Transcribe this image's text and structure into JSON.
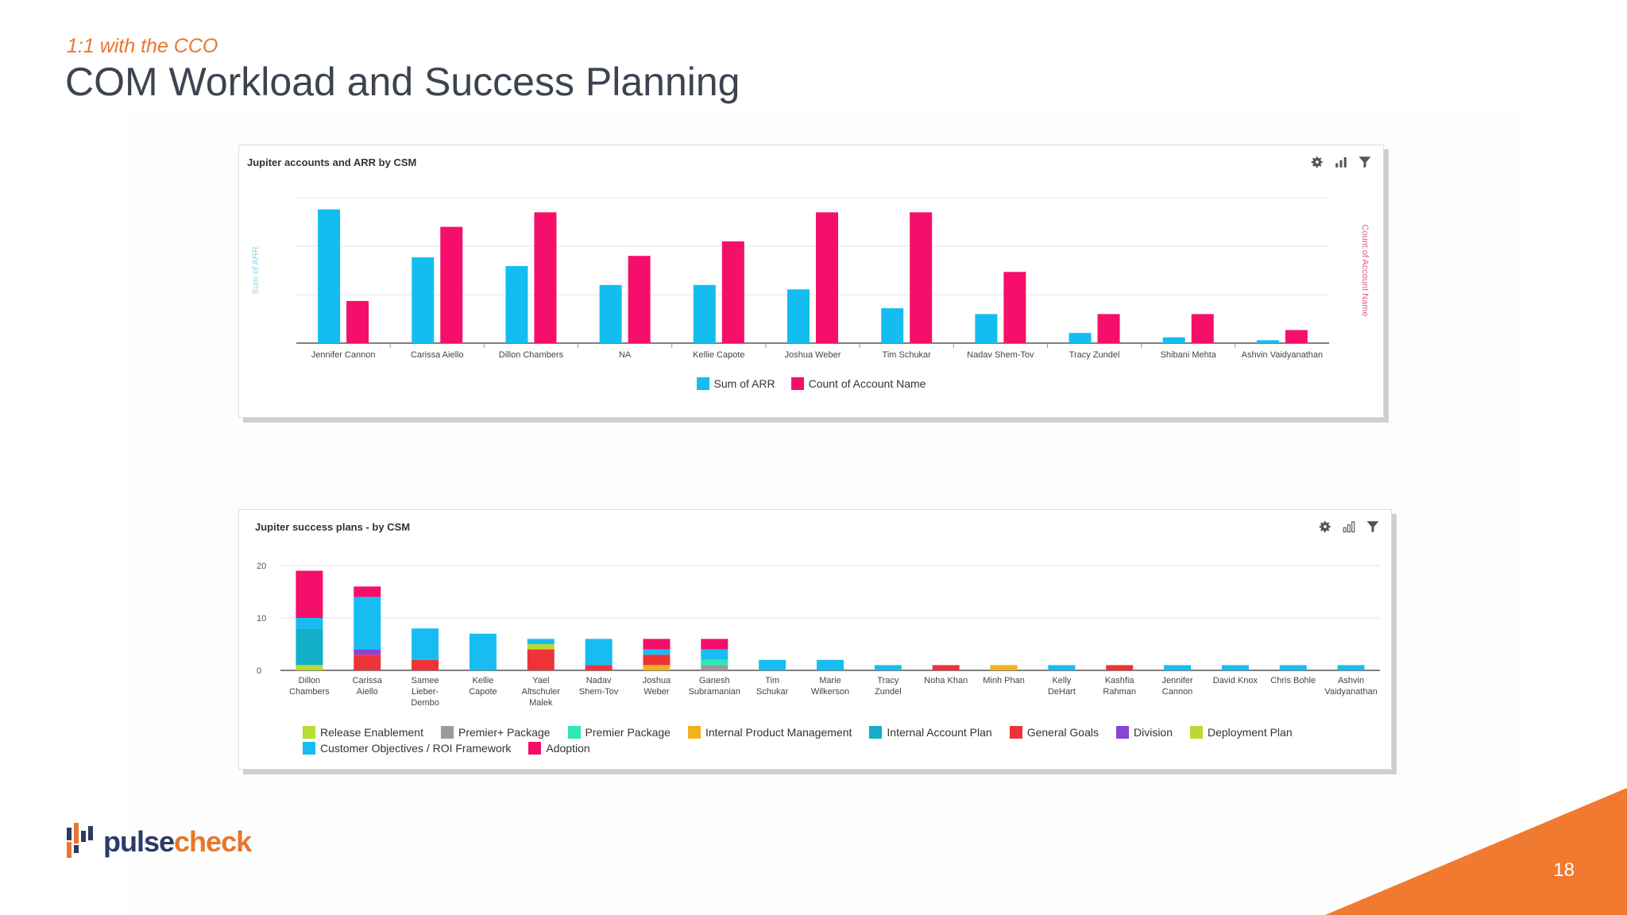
{
  "slide": {
    "subtitle": "1:1 with the CCO",
    "title": "COM Workload and Success Planning",
    "page_number": "18",
    "logo": {
      "part1": "pulse",
      "part2": "check"
    }
  },
  "colors": {
    "accent": "#e8762d",
    "navy": "#2b3a67"
  },
  "icons": [
    "gear-icon",
    "bar-chart-icon",
    "filter-icon"
  ],
  "chart_data": [
    {
      "type": "bar",
      "title": "Jupiter accounts and ARR by CSM",
      "ylabel": "Sum of ARR",
      "y2label": "Count of Account Name",
      "grid": true,
      "legend_position": "bottom",
      "categories": [
        "Jennifer Cannon",
        "Carissa Aiello",
        "Dillon Chambers",
        "NA",
        "Kellie Capote",
        "Joshua Weber",
        "Tim Schukar",
        "Nadav Shem-Tov",
        "Tracy Zundel",
        "Shibani Mehta",
        "Ashvin Vaidyanathan"
      ],
      "series": [
        {
          "name": "Sum of ARR",
          "color": "#14bdf0",
          "values": [
            0.92,
            0.59,
            0.53,
            0.4,
            0.4,
            0.37,
            0.24,
            0.2,
            0.07,
            0.04,
            0.02
          ]
        },
        {
          "name": "Count of Account Name",
          "color": "#f50f6a",
          "values": [
            0.29,
            0.8,
            0.9,
            0.6,
            0.7,
            0.9,
            0.9,
            0.49,
            0.2,
            0.2,
            0.09
          ]
        }
      ]
    },
    {
      "type": "bar",
      "stacked": true,
      "title": "Jupiter success plans - by CSM",
      "grid": true,
      "legend_position": "bottom",
      "ylim": [
        0,
        20
      ],
      "yticks": [
        "0",
        "10",
        "20"
      ],
      "categories": [
        [
          "Dillon",
          "Chambers"
        ],
        [
          "Carissa",
          "Aiello"
        ],
        [
          "Samee",
          "Lieber-",
          "Dembo"
        ],
        [
          "Kellie",
          "Capote"
        ],
        [
          "Yael",
          "Altschuler",
          "Malek"
        ],
        [
          "Nadav",
          "Shem-Tov"
        ],
        [
          "Joshua",
          "Weber"
        ],
        [
          "Ganesh",
          "Subramanian"
        ],
        [
          "Tim",
          "Schukar"
        ],
        [
          "Marie",
          "Wilkerson"
        ],
        [
          "Tracy",
          "Zundel"
        ],
        [
          "Noha Khan"
        ],
        [
          "Minh Phan"
        ],
        [
          "Kelly",
          "DeHart"
        ],
        [
          "Kashfia",
          "Rahman"
        ],
        [
          "Jennifer",
          "Cannon"
        ],
        [
          "David Knox"
        ],
        [
          "Chris Bohle"
        ],
        [
          "Ashvin",
          "Vaidyanathan"
        ]
      ],
      "series": [
        {
          "name": "Release Enablement",
          "color": "#b6dd2f",
          "values": [
            1,
            0,
            0,
            0,
            0,
            0,
            0,
            0,
            0,
            0,
            0,
            0,
            0,
            0,
            0,
            0,
            0,
            0,
            0
          ]
        },
        {
          "name": "Premier+ Package",
          "color": "#9a9a9a",
          "values": [
            0,
            0,
            0,
            0,
            0,
            0,
            0,
            1,
            0,
            0,
            0,
            0,
            0,
            0,
            0,
            0,
            0,
            0,
            0
          ]
        },
        {
          "name": "Premier Package",
          "color": "#2ee8b6",
          "values": [
            0,
            0,
            0,
            0,
            0,
            0,
            0,
            1,
            0,
            0,
            0,
            0,
            0,
            0,
            0,
            0,
            0,
            0,
            0
          ]
        },
        {
          "name": "Internal Product Management",
          "color": "#f2b01e",
          "values": [
            0,
            0,
            0,
            0,
            0,
            0,
            1,
            0,
            0,
            0,
            0,
            0,
            1,
            0,
            0,
            0,
            0,
            0,
            0
          ]
        },
        {
          "name": "Internal Account Plan",
          "color": "#11afc8",
          "values": [
            7,
            0,
            0,
            0,
            0,
            0,
            0,
            0,
            0,
            0,
            0,
            0,
            0,
            0,
            0,
            0,
            0,
            0,
            0
          ]
        },
        {
          "name": "General Goals",
          "color": "#ee3338",
          "values": [
            0,
            3,
            2,
            0,
            4,
            1,
            2,
            0,
            0,
            0,
            0,
            1,
            0,
            0,
            1,
            0,
            0,
            0,
            0
          ]
        },
        {
          "name": "Division",
          "color": "#8a44d4",
          "values": [
            0,
            1,
            0,
            0,
            0,
            0,
            0,
            0,
            0,
            0,
            0,
            0,
            0,
            0,
            0,
            0,
            0,
            0,
            0
          ]
        },
        {
          "name": "Deployment Plan",
          "color": "#bcd833",
          "values": [
            0,
            0,
            0,
            0,
            1,
            0,
            0,
            0,
            0,
            0,
            0,
            0,
            0,
            0,
            0,
            0,
            0,
            0,
            0
          ]
        },
        {
          "name": "Customer Objectives / ROI Framework",
          "color": "#17bdf2",
          "values": [
            2,
            10,
            6,
            7,
            1,
            5,
            1,
            2,
            2,
            2,
            1,
            0,
            0,
            1,
            0,
            1,
            1,
            1,
            1
          ]
        },
        {
          "name": "Adoption",
          "color": "#f50f6a",
          "values": [
            9,
            2,
            0,
            0,
            0,
            0,
            2,
            2,
            0,
            0,
            0,
            0,
            0,
            0,
            0,
            0,
            0,
            0,
            0
          ]
        }
      ]
    }
  ]
}
